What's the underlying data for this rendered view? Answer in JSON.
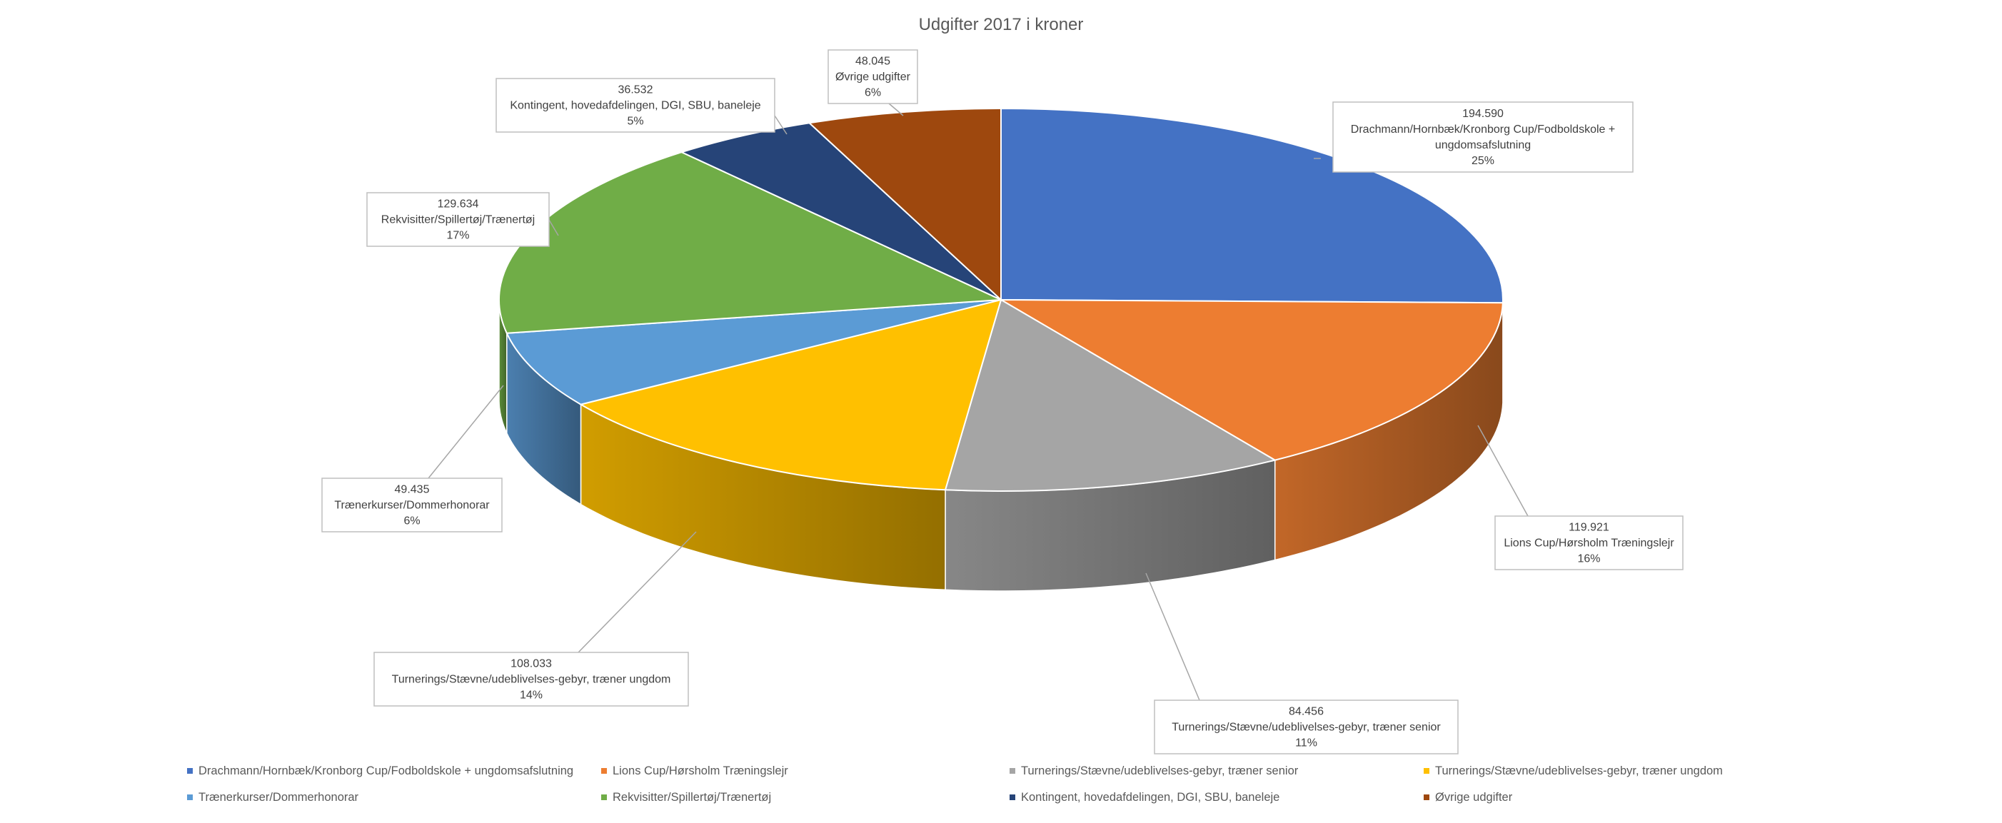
{
  "chart_data": {
    "type": "pie",
    "style": "3d-exploded-depth",
    "title": "Udgifter 2017 i kroner",
    "slices": [
      {
        "category": "Drachmann/Hornbæk/Kronborg Cup/Fodboldskole + ungdomsafslutning",
        "label_lines": [
          "Drachmann/Hornbæk/Kronborg Cup/Fodboldskole +",
          "ungdomsafslutning"
        ],
        "value": 194590,
        "value_label": "194.590",
        "percent_label": "25%",
        "color": "#4472C4"
      },
      {
        "category": "Lions Cup/Hørsholm Træningslejr",
        "label_lines": [
          "Lions Cup/Hørsholm Træningslejr"
        ],
        "value": 119921,
        "value_label": "119.921",
        "percent_label": "16%",
        "color": "#ED7D31"
      },
      {
        "category": "Turnerings/Stævne/udeblivelses-gebyr, træner senior",
        "label_lines": [
          "Turnerings/Stævne/udeblivelses-gebyr, træner senior"
        ],
        "value": 84456,
        "value_label": "84.456",
        "percent_label": "11%",
        "color": "#A5A5A5"
      },
      {
        "category": "Turnerings/Stævne/udeblivelses-gebyr, træner ungdom",
        "label_lines": [
          "Turnerings/Stævne/udeblivelses-gebyr, træner ungdom"
        ],
        "value": 108033,
        "value_label": "108.033",
        "percent_label": "14%",
        "color": "#FFC000"
      },
      {
        "category": "Trænerkurser/Dommerhonorar",
        "label_lines": [
          "Trænerkurser/Dommerhonorar"
        ],
        "value": 49435,
        "value_label": "49.435",
        "percent_label": "6%",
        "color": "#5B9BD5"
      },
      {
        "category": "Rekvisitter/Spillertøj/Trænertøj",
        "label_lines": [
          "Rekvisitter/Spillertøj/Trænertøj"
        ],
        "value": 129634,
        "value_label": "129.634",
        "percent_label": "17%",
        "color": "#70AD47"
      },
      {
        "category": "Kontingent, hovedafdelingen, DGI, SBU, baneleje",
        "label_lines": [
          "Kontingent, hovedafdelingen, DGI, SBU, baneleje"
        ],
        "value": 36532,
        "value_label": "36.532",
        "percent_label": "5%",
        "color": "#264478"
      },
      {
        "category": "Øvrige udgifter",
        "label_lines": [
          "Øvrige udgifter"
        ],
        "value": 48045,
        "value_label": "48.045",
        "percent_label": "6%",
        "color": "#9E480E"
      }
    ],
    "legend_position": "bottom",
    "data_labels": "callouts with value, category and percent"
  }
}
